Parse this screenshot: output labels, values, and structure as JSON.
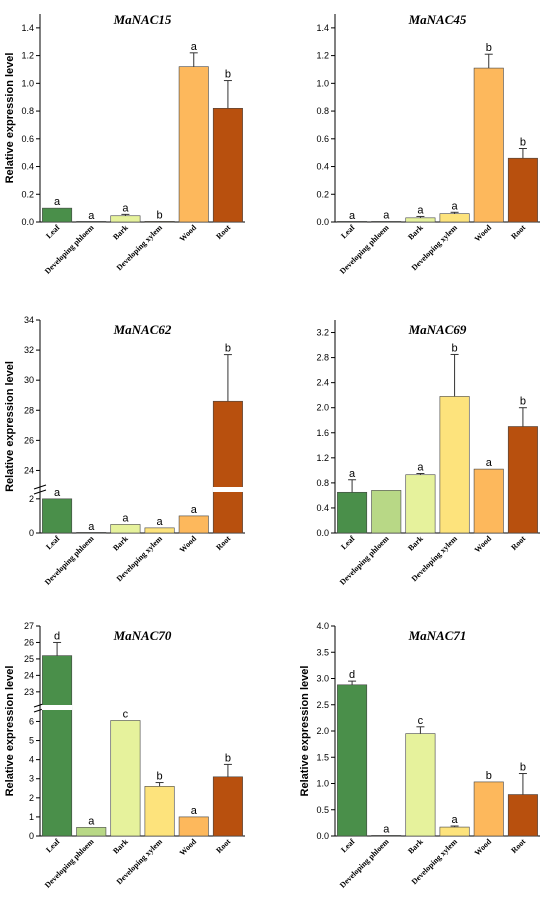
{
  "chart_data": [
    {
      "type": "bar",
      "title": "MaNAC15",
      "ylabel": "Relative expression level",
      "categories": [
        "Leaf",
        "Developing phloem",
        "Bark",
        "Developing xylem",
        "Wood",
        "Root"
      ],
      "values": [
        0.1,
        0.0,
        0.045,
        0.005,
        1.12,
        0.82
      ],
      "errors": [
        0.0,
        0.0,
        0.01,
        0.0,
        0.1,
        0.2
      ],
      "labels": [
        "a",
        "a",
        "a",
        "b",
        "a",
        "b"
      ],
      "ylim": [
        0,
        1.5
      ],
      "ticks": [
        0.0,
        0.2,
        0.4,
        0.6,
        0.8,
        1.0,
        1.2,
        1.4
      ],
      "tick_labels": [
        "0.0",
        "0.2",
        "0.4",
        "0.6",
        "0.8",
        "1.0",
        "1.2",
        "1.4"
      ],
      "colors": [
        "#4a8f4a",
        "#4a8f4a",
        "#e6f29c",
        "#fde37c",
        "#fdb85c",
        "#b8500e"
      ]
    },
    {
      "type": "bar",
      "title": "MaNAC45",
      "ylabel": "",
      "categories": [
        "Leaf",
        "Developing phloem",
        "Bark",
        "Developing xylem",
        "Wood",
        "Root"
      ],
      "values": [
        0.0,
        0.002,
        0.03,
        0.06,
        1.11,
        0.46
      ],
      "errors": [
        0.0,
        0.0,
        0.01,
        0.01,
        0.1,
        0.07
      ],
      "labels": [
        "a",
        "a",
        "a",
        "a",
        "b",
        "b"
      ],
      "ylim": [
        0,
        1.5
      ],
      "ticks": [
        0.0,
        0.2,
        0.4,
        0.6,
        0.8,
        1.0,
        1.2,
        1.4
      ],
      "tick_labels": [
        "0.0",
        "0.2",
        "0.4",
        "0.6",
        "0.8",
        "1.0",
        "1.2",
        "1.4"
      ],
      "colors": [
        "#4a8f4a",
        "#b8d886",
        "#e6f29c",
        "#fde37c",
        "#fdb85c",
        "#b8500e"
      ]
    },
    {
      "type": "bar",
      "title": "MaNAC62",
      "ylabel": "Relative expression level",
      "categories": [
        "Leaf",
        "Developing phloem",
        "Bark",
        "Developing xylem",
        "Wood",
        "Root"
      ],
      "values": [
        2.0,
        0.0,
        0.5,
        0.3,
        1.0,
        28.6
      ],
      "errors": [
        0.0,
        0.0,
        0.0,
        0.0,
        0.0,
        3.1
      ],
      "labels": [
        "a",
        "a",
        "a",
        "a",
        "a",
        "b"
      ],
      "ylim": [
        0,
        34
      ],
      "ticks": [
        0,
        2,
        24,
        26,
        28,
        30,
        32,
        34
      ],
      "tick_labels": [
        "0",
        "2",
        "24",
        "26",
        "28",
        "30",
        "32",
        "34"
      ],
      "colors": [
        "#4a8f4a",
        "#b8d886",
        "#e6f29c",
        "#fde37c",
        "#fdb85c",
        "#b8500e"
      ]
    },
    {
      "type": "bar",
      "title": "MaNAC69",
      "ylabel": "",
      "categories": [
        "Leaf",
        "Developing phloem",
        "Bark",
        "Developing xylem",
        "Wood",
        "Root"
      ],
      "values": [
        0.65,
        0.68,
        0.93,
        2.18,
        1.02,
        1.7
      ],
      "errors": [
        0.2,
        0.0,
        0.02,
        0.67,
        0.0,
        0.3
      ],
      "labels": [
        "a",
        "",
        "a",
        "b",
        "a",
        "b"
      ],
      "ylim": [
        0,
        3.4
      ],
      "ticks": [
        0.0,
        0.4,
        0.8,
        1.2,
        1.6,
        2.0,
        2.4,
        2.8,
        3.2
      ],
      "tick_labels": [
        "0.0",
        "0.4",
        "0.8",
        "1.2",
        "1.6",
        "2.0",
        "2.4",
        "2.8",
        "3.2"
      ],
      "colors": [
        "#4a8f4a",
        "#b8d886",
        "#e6f29c",
        "#fde37c",
        "#fdb85c",
        "#b8500e"
      ]
    },
    {
      "type": "bar",
      "title": "MaNAC70",
      "ylabel": "Relative expression level",
      "categories": [
        "Leaf",
        "Developing phloem",
        "Bark",
        "Developing xylem",
        "Wood",
        "Root"
      ],
      "values": [
        25.2,
        0.45,
        6.05,
        2.6,
        1.0,
        3.1
      ],
      "errors": [
        0.8,
        0.0,
        0.0,
        0.2,
        0.0,
        0.65
      ],
      "labels": [
        "d",
        "a",
        "c",
        "b",
        "a",
        "b"
      ],
      "ylim": [
        0,
        27
      ],
      "ticks": [
        0,
        1,
        2,
        3,
        4,
        5,
        6,
        23,
        24,
        25,
        26,
        27
      ],
      "tick_labels": [
        "0",
        "1",
        "2",
        "3",
        "4",
        "5",
        "6",
        "23",
        "24",
        "25",
        "26",
        "27"
      ],
      "colors": [
        "#4a8f4a",
        "#b8d886",
        "#e6f29c",
        "#fde37c",
        "#fdb85c",
        "#b8500e"
      ]
    },
    {
      "type": "bar",
      "title": "MaNAC71",
      "ylabel": "Relative expression level",
      "categories": [
        "Leaf",
        "Developing phloem",
        "Bark",
        "Developing xylem",
        "Wood",
        "Root"
      ],
      "values": [
        2.88,
        0.01,
        1.95,
        0.17,
        1.03,
        0.79
      ],
      "errors": [
        0.07,
        0.0,
        0.13,
        0.02,
        0.0,
        0.4
      ],
      "labels": [
        "d",
        "a",
        "c",
        "a",
        "b",
        "b"
      ],
      "ylim": [
        0,
        4.0
      ],
      "ticks": [
        0.0,
        0.5,
        1.0,
        1.5,
        2.0,
        2.5,
        3.0,
        3.5,
        4.0
      ],
      "tick_labels": [
        "0.0",
        "0.5",
        "1.0",
        "1.5",
        "2.0",
        "2.5",
        "3.0",
        "3.5",
        "4.0"
      ],
      "colors": [
        "#4a8f4a",
        "#b8d886",
        "#e6f29c",
        "#fde37c",
        "#fdb85c",
        "#b8500e"
      ]
    }
  ]
}
